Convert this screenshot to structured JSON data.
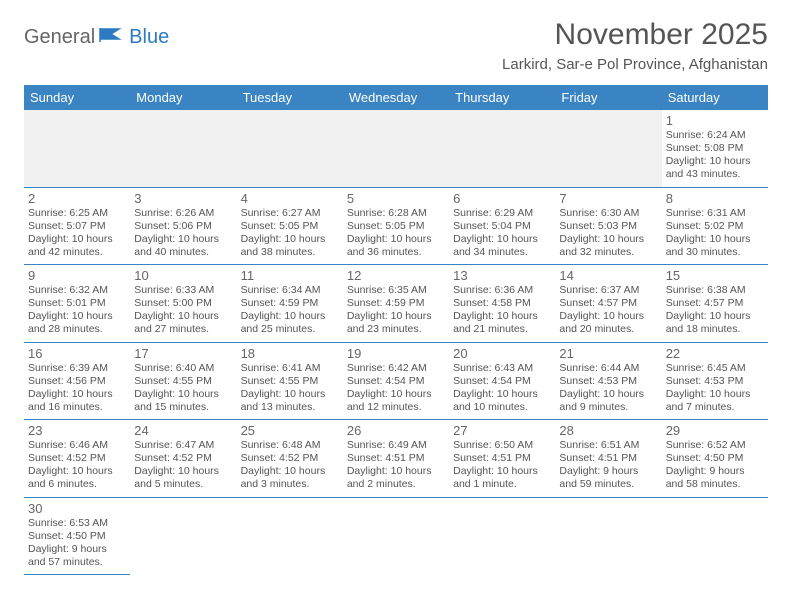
{
  "logo": {
    "part1": "General",
    "part2": "Blue"
  },
  "title": "November 2025",
  "location": "Larkird, Sar-e Pol Province, Afghanistan",
  "colors": {
    "header_bg": "#3b84c4",
    "header_text": "#ffffff",
    "cell_border": "#3b84c4",
    "empty_bg": "#f1f1f1",
    "logo_gray": "#656565",
    "logo_blue": "#2b7ac2"
  },
  "weekdays": [
    "Sunday",
    "Monday",
    "Tuesday",
    "Wednesday",
    "Thursday",
    "Friday",
    "Saturday"
  ],
  "weeks": [
    [
      null,
      null,
      null,
      null,
      null,
      null,
      {
        "n": "1",
        "sr": "Sunrise: 6:24 AM",
        "ss": "Sunset: 5:08 PM",
        "d1": "Daylight: 10 hours",
        "d2": "and 43 minutes."
      }
    ],
    [
      {
        "n": "2",
        "sr": "Sunrise: 6:25 AM",
        "ss": "Sunset: 5:07 PM",
        "d1": "Daylight: 10 hours",
        "d2": "and 42 minutes."
      },
      {
        "n": "3",
        "sr": "Sunrise: 6:26 AM",
        "ss": "Sunset: 5:06 PM",
        "d1": "Daylight: 10 hours",
        "d2": "and 40 minutes."
      },
      {
        "n": "4",
        "sr": "Sunrise: 6:27 AM",
        "ss": "Sunset: 5:05 PM",
        "d1": "Daylight: 10 hours",
        "d2": "and 38 minutes."
      },
      {
        "n": "5",
        "sr": "Sunrise: 6:28 AM",
        "ss": "Sunset: 5:05 PM",
        "d1": "Daylight: 10 hours",
        "d2": "and 36 minutes."
      },
      {
        "n": "6",
        "sr": "Sunrise: 6:29 AM",
        "ss": "Sunset: 5:04 PM",
        "d1": "Daylight: 10 hours",
        "d2": "and 34 minutes."
      },
      {
        "n": "7",
        "sr": "Sunrise: 6:30 AM",
        "ss": "Sunset: 5:03 PM",
        "d1": "Daylight: 10 hours",
        "d2": "and 32 minutes."
      },
      {
        "n": "8",
        "sr": "Sunrise: 6:31 AM",
        "ss": "Sunset: 5:02 PM",
        "d1": "Daylight: 10 hours",
        "d2": "and 30 minutes."
      }
    ],
    [
      {
        "n": "9",
        "sr": "Sunrise: 6:32 AM",
        "ss": "Sunset: 5:01 PM",
        "d1": "Daylight: 10 hours",
        "d2": "and 28 minutes."
      },
      {
        "n": "10",
        "sr": "Sunrise: 6:33 AM",
        "ss": "Sunset: 5:00 PM",
        "d1": "Daylight: 10 hours",
        "d2": "and 27 minutes."
      },
      {
        "n": "11",
        "sr": "Sunrise: 6:34 AM",
        "ss": "Sunset: 4:59 PM",
        "d1": "Daylight: 10 hours",
        "d2": "and 25 minutes."
      },
      {
        "n": "12",
        "sr": "Sunrise: 6:35 AM",
        "ss": "Sunset: 4:59 PM",
        "d1": "Daylight: 10 hours",
        "d2": "and 23 minutes."
      },
      {
        "n": "13",
        "sr": "Sunrise: 6:36 AM",
        "ss": "Sunset: 4:58 PM",
        "d1": "Daylight: 10 hours",
        "d2": "and 21 minutes."
      },
      {
        "n": "14",
        "sr": "Sunrise: 6:37 AM",
        "ss": "Sunset: 4:57 PM",
        "d1": "Daylight: 10 hours",
        "d2": "and 20 minutes."
      },
      {
        "n": "15",
        "sr": "Sunrise: 6:38 AM",
        "ss": "Sunset: 4:57 PM",
        "d1": "Daylight: 10 hours",
        "d2": "and 18 minutes."
      }
    ],
    [
      {
        "n": "16",
        "sr": "Sunrise: 6:39 AM",
        "ss": "Sunset: 4:56 PM",
        "d1": "Daylight: 10 hours",
        "d2": "and 16 minutes."
      },
      {
        "n": "17",
        "sr": "Sunrise: 6:40 AM",
        "ss": "Sunset: 4:55 PM",
        "d1": "Daylight: 10 hours",
        "d2": "and 15 minutes."
      },
      {
        "n": "18",
        "sr": "Sunrise: 6:41 AM",
        "ss": "Sunset: 4:55 PM",
        "d1": "Daylight: 10 hours",
        "d2": "and 13 minutes."
      },
      {
        "n": "19",
        "sr": "Sunrise: 6:42 AM",
        "ss": "Sunset: 4:54 PM",
        "d1": "Daylight: 10 hours",
        "d2": "and 12 minutes."
      },
      {
        "n": "20",
        "sr": "Sunrise: 6:43 AM",
        "ss": "Sunset: 4:54 PM",
        "d1": "Daylight: 10 hours",
        "d2": "and 10 minutes."
      },
      {
        "n": "21",
        "sr": "Sunrise: 6:44 AM",
        "ss": "Sunset: 4:53 PM",
        "d1": "Daylight: 10 hours",
        "d2": "and 9 minutes."
      },
      {
        "n": "22",
        "sr": "Sunrise: 6:45 AM",
        "ss": "Sunset: 4:53 PM",
        "d1": "Daylight: 10 hours",
        "d2": "and 7 minutes."
      }
    ],
    [
      {
        "n": "23",
        "sr": "Sunrise: 6:46 AM",
        "ss": "Sunset: 4:52 PM",
        "d1": "Daylight: 10 hours",
        "d2": "and 6 minutes."
      },
      {
        "n": "24",
        "sr": "Sunrise: 6:47 AM",
        "ss": "Sunset: 4:52 PM",
        "d1": "Daylight: 10 hours",
        "d2": "and 5 minutes."
      },
      {
        "n": "25",
        "sr": "Sunrise: 6:48 AM",
        "ss": "Sunset: 4:52 PM",
        "d1": "Daylight: 10 hours",
        "d2": "and 3 minutes."
      },
      {
        "n": "26",
        "sr": "Sunrise: 6:49 AM",
        "ss": "Sunset: 4:51 PM",
        "d1": "Daylight: 10 hours",
        "d2": "and 2 minutes."
      },
      {
        "n": "27",
        "sr": "Sunrise: 6:50 AM",
        "ss": "Sunset: 4:51 PM",
        "d1": "Daylight: 10 hours",
        "d2": "and 1 minute."
      },
      {
        "n": "28",
        "sr": "Sunrise: 6:51 AM",
        "ss": "Sunset: 4:51 PM",
        "d1": "Daylight: 9 hours",
        "d2": "and 59 minutes."
      },
      {
        "n": "29",
        "sr": "Sunrise: 6:52 AM",
        "ss": "Sunset: 4:50 PM",
        "d1": "Daylight: 9 hours",
        "d2": "and 58 minutes."
      }
    ],
    [
      {
        "n": "30",
        "sr": "Sunrise: 6:53 AM",
        "ss": "Sunset: 4:50 PM",
        "d1": "Daylight: 9 hours",
        "d2": "and 57 minutes."
      },
      null,
      null,
      null,
      null,
      null,
      null
    ]
  ]
}
